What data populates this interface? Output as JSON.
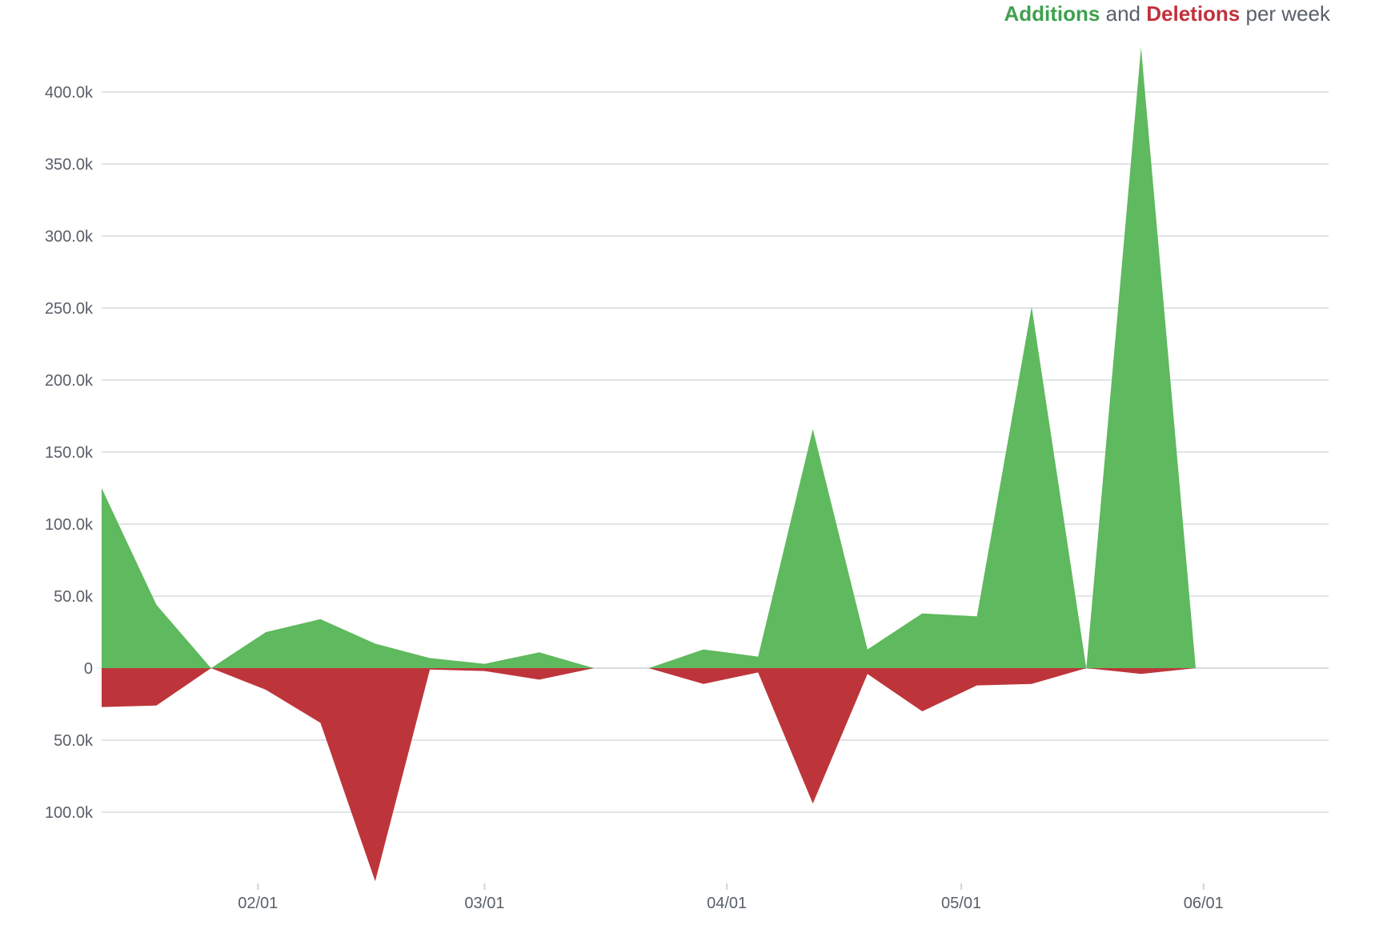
{
  "title": {
    "additions": "Additions",
    "and": "and",
    "deletions": "Deletions",
    "suffix": "per week"
  },
  "chart_data": {
    "type": "area",
    "title": "Additions and Deletions per week",
    "x_unit": "date",
    "year": 2024,
    "ylim": [
      -148000,
      430000
    ],
    "grid": true,
    "y_ticks": [
      {
        "value": 400000,
        "label": "400.0k"
      },
      {
        "value": 350000,
        "label": "350.0k"
      },
      {
        "value": 300000,
        "label": "300.0k"
      },
      {
        "value": 250000,
        "label": "250.0k"
      },
      {
        "value": 200000,
        "label": "200.0k"
      },
      {
        "value": 150000,
        "label": "150.0k"
      },
      {
        "value": 100000,
        "label": "100.0k"
      },
      {
        "value": 50000,
        "label": "50.0k"
      },
      {
        "value": 0,
        "label": "0"
      },
      {
        "value": -50000,
        "label": "50.0k"
      },
      {
        "value": -100000,
        "label": "100.0k"
      }
    ],
    "x_ticks": [
      {
        "date": "2024-02-01",
        "label": "02/01"
      },
      {
        "date": "2024-03-01",
        "label": "03/01"
      },
      {
        "date": "2024-04-01",
        "label": "04/01"
      },
      {
        "date": "2024-05-01",
        "label": "05/01"
      },
      {
        "date": "2024-06-01",
        "label": "06/01"
      }
    ],
    "x_domain": [
      "2024-01-12",
      "2024-06-17"
    ],
    "series": [
      {
        "name": "Additions",
        "color": "#5fb95e",
        "segments": [
          [
            [
              "2024-01-12",
              125000
            ],
            [
              "2024-01-19",
              44000
            ],
            [
              "2024-01-26",
              0
            ]
          ],
          [
            [
              "2024-01-26",
              0
            ],
            [
              "2024-02-02",
              25000
            ],
            [
              "2024-02-09",
              34000
            ],
            [
              "2024-02-16",
              17000
            ],
            [
              "2024-02-23",
              7000
            ],
            [
              "2024-03-01",
              3000
            ],
            [
              "2024-03-08",
              11000
            ],
            [
              "2024-03-15",
              0
            ]
          ],
          [
            [
              "2024-03-22",
              0
            ],
            [
              "2024-03-29",
              13000
            ],
            [
              "2024-04-05",
              8000
            ],
            [
              "2024-04-12",
              166000
            ],
            [
              "2024-04-19",
              13000
            ],
            [
              "2024-04-26",
              38000
            ],
            [
              "2024-05-03",
              36000
            ],
            [
              "2024-05-10",
              251000
            ],
            [
              "2024-05-17",
              0
            ]
          ],
          [
            [
              "2024-05-17",
              0
            ],
            [
              "2024-05-24",
              431000
            ],
            [
              "2024-05-31",
              0
            ]
          ]
        ]
      },
      {
        "name": "Deletions",
        "color": "#bd353b",
        "segments": [
          [
            [
              "2024-01-12",
              -27000
            ],
            [
              "2024-01-19",
              -26000
            ],
            [
              "2024-01-26",
              0
            ]
          ],
          [
            [
              "2024-01-26",
              0
            ],
            [
              "2024-02-02",
              -15000
            ],
            [
              "2024-02-09",
              -38000
            ],
            [
              "2024-02-16",
              -148000
            ],
            [
              "2024-02-23",
              -1000
            ],
            [
              "2024-03-01",
              -2000
            ],
            [
              "2024-03-08",
              -8000
            ],
            [
              "2024-03-15",
              0
            ]
          ],
          [
            [
              "2024-03-22",
              0
            ],
            [
              "2024-03-29",
              -11000
            ],
            [
              "2024-04-05",
              -3000
            ],
            [
              "2024-04-12",
              -94000
            ],
            [
              "2024-04-19",
              -4000
            ],
            [
              "2024-04-26",
              -30000
            ],
            [
              "2024-05-03",
              -12000
            ],
            [
              "2024-05-10",
              -11000
            ],
            [
              "2024-05-17",
              0
            ]
          ],
          [
            [
              "2024-05-17",
              0
            ],
            [
              "2024-05-24",
              -4000
            ],
            [
              "2024-05-31",
              0
            ]
          ]
        ]
      }
    ]
  }
}
